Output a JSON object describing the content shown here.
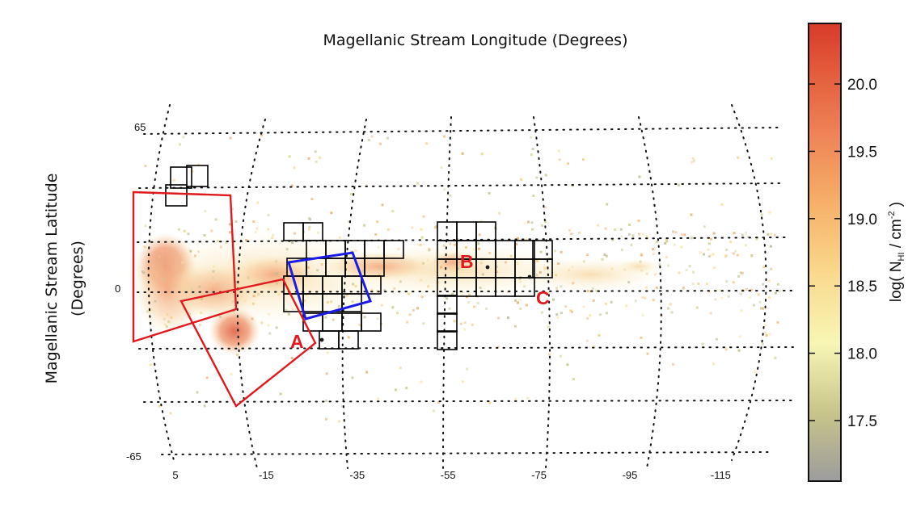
{
  "chart_data": {
    "type": "heatmap",
    "title": "Magellanic Stream Longitude (Degrees)",
    "xlabel": "Magellanic Stream Longitude (Degrees)",
    "ylabel_line1": "Magellanic Stream Latitude",
    "ylabel_line2": "(Degrees)",
    "projection": "Hammer-Aitoff",
    "x_ticks": [
      "5",
      "-15",
      "-35",
      "-55",
      "-75",
      "-95",
      "-115"
    ],
    "x_tick_values": [
      5,
      -15,
      -35,
      -55,
      -75,
      -95,
      -115
    ],
    "y_ticks": [
      "65",
      "0",
      "-65"
    ],
    "grid": "dotted graticule",
    "colorbar": {
      "label_prefix": "log( N",
      "label_sub": "HI",
      "label_mid": " / cm",
      "label_sup": "-2",
      "label_suffix": " )",
      "range": [
        17.05,
        20.45
      ],
      "ticks": [
        "17.5",
        "18.0",
        "18.5",
        "19.0",
        "19.5",
        "20.0"
      ],
      "tick_values": [
        17.5,
        18.0,
        18.5,
        19.0,
        19.5,
        20.0
      ],
      "colormap": [
        "#9c9c9c",
        "#c8c58a",
        "#f7f6b4",
        "#f9da8e",
        "#f6b26a",
        "#ef8657",
        "#e35a3a",
        "#d83a2a"
      ]
    },
    "annotations": [
      {
        "label": "A",
        "color": "#e0191f"
      },
      {
        "label": "B",
        "color": "#e0191f"
      },
      {
        "label": "C",
        "color": "#e0191f"
      }
    ],
    "overlays": {
      "red_fields_color": "#e0191f",
      "blue_field_color": "#1b1be6",
      "black_grid_color": "#000000"
    }
  }
}
